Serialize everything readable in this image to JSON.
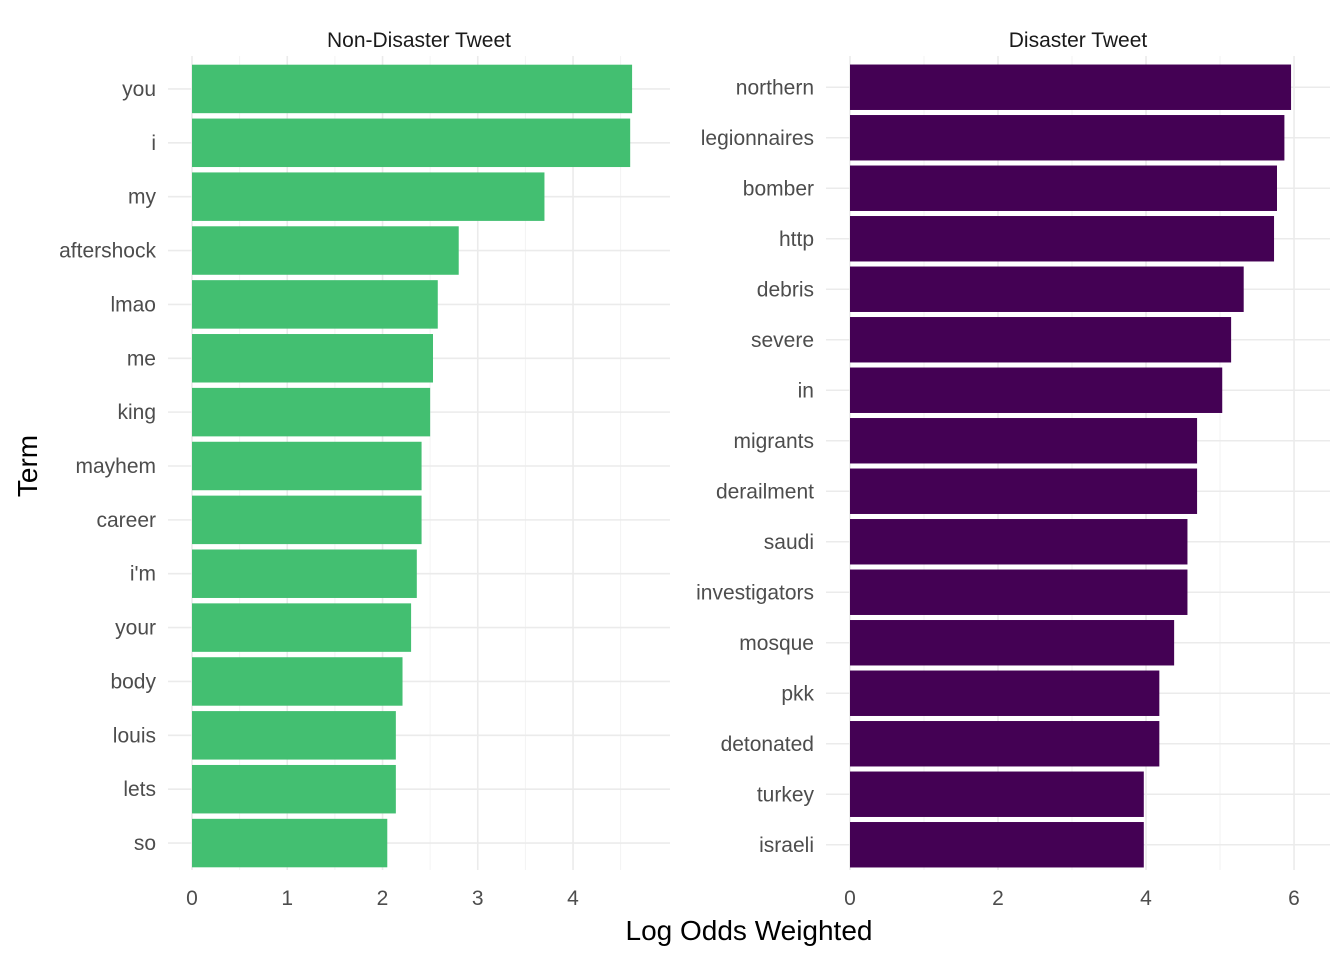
{
  "chart_data": {
    "type": "bar",
    "orientation": "horizontal",
    "faceted": true,
    "xlabel": "Log Odds Weighted",
    "ylabel": "Term",
    "grid": true,
    "legend": "none",
    "panels": [
      {
        "title": "Non-Disaster Tweet",
        "color": "#43BF71",
        "categories": [
          "you",
          "i",
          "my",
          "aftershock",
          "lmao",
          "me",
          "king",
          "mayhem",
          "career",
          "i'm",
          "your",
          "body",
          "louis",
          "lets",
          "so"
        ],
        "values": [
          4.62,
          4.6,
          3.7,
          2.8,
          2.58,
          2.53,
          2.5,
          2.41,
          2.41,
          2.36,
          2.3,
          2.21,
          2.14,
          2.14,
          2.05
        ],
        "xlim": [
          0,
          4.85
        ],
        "xticks": [
          0,
          1,
          2,
          3,
          4
        ]
      },
      {
        "title": "Disaster Tweet",
        "color": "#440154",
        "categories": [
          "northern",
          "legionnaires",
          "bomber",
          "http",
          "debris",
          "severe",
          "in",
          "migrants",
          "derailment",
          "saudi",
          "investigators",
          "mosque",
          "pkk",
          "detonated",
          "turkey",
          "israeli"
        ],
        "values": [
          5.96,
          5.87,
          5.77,
          5.73,
          5.32,
          5.15,
          5.03,
          4.69,
          4.69,
          4.56,
          4.56,
          4.38,
          4.18,
          4.18,
          3.97,
          3.97
        ],
        "xlim": [
          0,
          6.27
        ],
        "xticks": [
          0,
          2,
          4,
          6
        ]
      }
    ]
  }
}
